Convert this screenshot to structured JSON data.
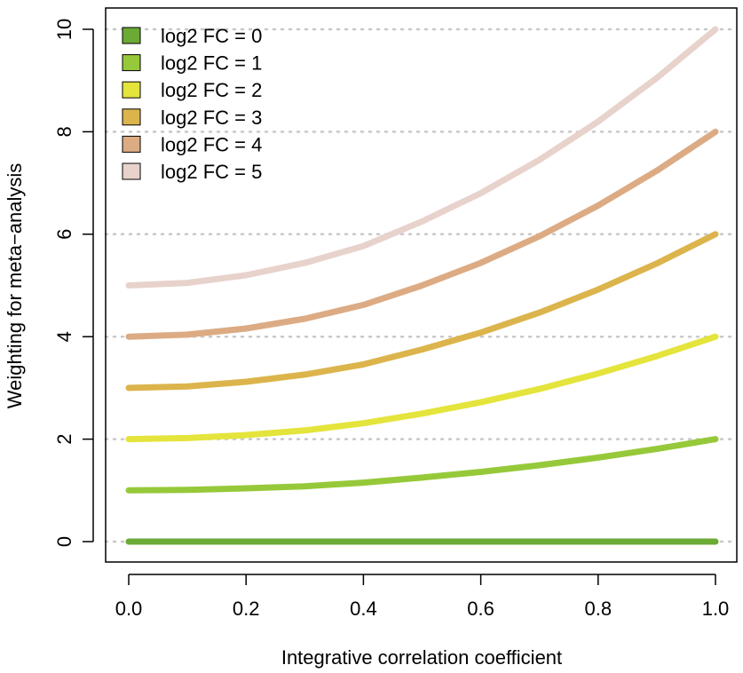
{
  "chart_data": {
    "type": "line",
    "title": "",
    "xlabel": "Integrative correlation coefficient",
    "ylabel": "Weighting for meta−analysis",
    "xlim": [
      0,
      1
    ],
    "ylim": [
      0,
      10
    ],
    "x_ticks": [
      "0.0",
      "0.2",
      "0.4",
      "0.6",
      "0.8",
      "1.0"
    ],
    "y_ticks": [
      "0",
      "2",
      "4",
      "6",
      "8",
      "10"
    ],
    "grid": "horizontal dotted",
    "legend_position": "top-left",
    "x": [
      0.0,
      0.1,
      0.2,
      0.3,
      0.4,
      0.5,
      0.6,
      0.7,
      0.8,
      0.9,
      1.0
    ],
    "series": [
      {
        "name": "log2 FC = 0",
        "color": "#6aaa35",
        "values": [
          0,
          0,
          0,
          0,
          0,
          0,
          0,
          0,
          0,
          0,
          0
        ]
      },
      {
        "name": "log2 FC = 1",
        "color": "#96c93a",
        "values": [
          1.0,
          1.008,
          1.04,
          1.08,
          1.15,
          1.25,
          1.36,
          1.49,
          1.64,
          1.81,
          2.0
        ]
      },
      {
        "name": "log2 FC = 2",
        "color": "#e4e43c",
        "values": [
          2.0,
          2.02,
          2.08,
          2.17,
          2.31,
          2.5,
          2.72,
          2.98,
          3.28,
          3.62,
          4.0
        ]
      },
      {
        "name": "log2 FC = 3",
        "color": "#dcb44c",
        "values": [
          3.0,
          3.03,
          3.12,
          3.26,
          3.46,
          3.75,
          4.08,
          4.47,
          4.92,
          5.43,
          6.0
        ]
      },
      {
        "name": "log2 FC = 4",
        "color": "#dcab84",
        "values": [
          4.0,
          4.04,
          4.16,
          4.35,
          4.62,
          5.0,
          5.44,
          5.96,
          6.56,
          7.24,
          8.0
        ]
      },
      {
        "name": "log2 FC = 5",
        "color": "#e8d2cc",
        "values": [
          5.0,
          5.05,
          5.2,
          5.44,
          5.77,
          6.25,
          6.8,
          7.45,
          8.2,
          9.05,
          10.0
        ]
      }
    ]
  }
}
